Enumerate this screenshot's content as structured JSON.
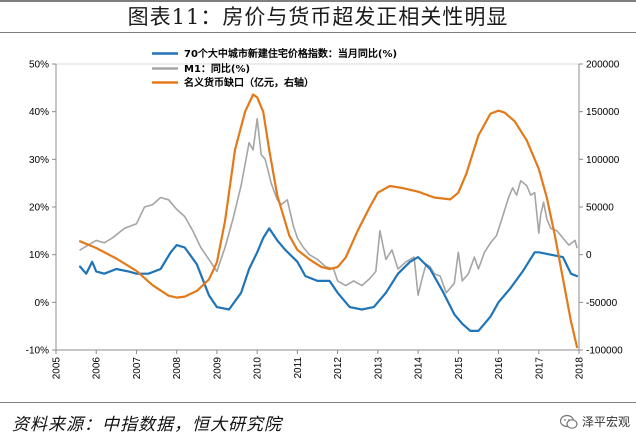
{
  "header": {
    "title": "图表11：房价与货币超发正相关性明显"
  },
  "footer": {
    "source": "资料来源：中指数据，恒大研究院",
    "brand": "泽平宏观"
  },
  "colors": {
    "price": "#1f74b8",
    "m1": "#a5a5a5",
    "gap": "#e37a1a"
  },
  "chart_data": {
    "type": "line",
    "title": "",
    "x_ticks": [
      "2005",
      "2006",
      "2007",
      "2008",
      "2009",
      "2010",
      "2011",
      "2012",
      "2013",
      "2014",
      "2015",
      "2016",
      "2017",
      "2018"
    ],
    "xlim": [
      2005.0,
      2018.0
    ],
    "y_left": {
      "ticks": [
        "-10%",
        "0%",
        "10%",
        "20%",
        "30%",
        "40%",
        "50%"
      ],
      "range": [
        -10,
        50
      ]
    },
    "y_right": {
      "ticks": [
        "-100000",
        "-50000",
        "0",
        "50000",
        "100000",
        "150000",
        "200000"
      ],
      "range": [
        -100000,
        200000
      ]
    },
    "legend": {
      "placement": "top-center"
    },
    "series": [
      {
        "name": "70个大中城市新建住宅价格指数：当月同比(%)",
        "axis": "left",
        "color": "#1f74b8",
        "x": [
          2005.6,
          2005.75,
          2005.9,
          2006.0,
          2006.2,
          2006.5,
          2006.8,
          2007.0,
          2007.3,
          2007.6,
          2007.85,
          2008.0,
          2008.2,
          2008.5,
          2008.8,
          2009.0,
          2009.3,
          2009.6,
          2009.8,
          2010.0,
          2010.15,
          2010.3,
          2010.5,
          2010.7,
          2011.0,
          2011.2,
          2011.5,
          2011.8,
          2012.0,
          2012.3,
          2012.6,
          2012.9,
          2013.2,
          2013.5,
          2013.8,
          2014.0,
          2014.3,
          2014.6,
          2014.9,
          2015.1,
          2015.3,
          2015.5,
          2015.8,
          2016.0,
          2016.3,
          2016.6,
          2016.9,
          2017.0,
          2017.3,
          2017.6,
          2017.8,
          2017.95
        ],
        "y": [
          7.5,
          6.0,
          8.5,
          6.5,
          6.0,
          7.0,
          6.5,
          6.0,
          6.0,
          7.0,
          10.5,
          12.0,
          11.5,
          8.0,
          1.5,
          -1.0,
          -1.5,
          2.0,
          7.0,
          10.5,
          13.5,
          15.5,
          13.0,
          11.0,
          8.5,
          5.5,
          4.5,
          4.5,
          2.0,
          -1.0,
          -1.5,
          -1.0,
          2.0,
          6.0,
          8.5,
          9.5,
          7.0,
          2.5,
          -2.5,
          -4.5,
          -6.0,
          -6.0,
          -3.0,
          0.0,
          3.0,
          6.5,
          10.5,
          10.5,
          10.0,
          9.5,
          6.0,
          5.5
        ]
      },
      {
        "name": "M1：同比(%)",
        "axis": "left",
        "color": "#a5a5a5",
        "x": [
          2005.6,
          2005.8,
          2006.0,
          2006.2,
          2006.4,
          2006.7,
          2007.0,
          2007.2,
          2007.4,
          2007.6,
          2007.8,
          2008.0,
          2008.2,
          2008.4,
          2008.6,
          2008.8,
          2009.0,
          2009.2,
          2009.4,
          2009.6,
          2009.8,
          2009.9,
          2010.0,
          2010.1,
          2010.2,
          2010.35,
          2010.5,
          2010.6,
          2010.75,
          2010.9,
          2011.0,
          2011.15,
          2011.3,
          2011.5,
          2011.7,
          2011.9,
          2012.0,
          2012.2,
          2012.4,
          2012.6,
          2012.8,
          2012.95,
          2013.05,
          2013.2,
          2013.35,
          2013.5,
          2013.7,
          2013.9,
          2014.0,
          2014.1,
          2014.2,
          2014.3,
          2014.4,
          2014.55,
          2014.7,
          2014.9,
          2015.0,
          2015.1,
          2015.25,
          2015.4,
          2015.5,
          2015.65,
          2015.8,
          2015.95,
          2016.1,
          2016.25,
          2016.35,
          2016.45,
          2016.55,
          2016.7,
          2016.8,
          2016.9,
          2017.0,
          2017.05,
          2017.12,
          2017.2,
          2017.3,
          2017.45,
          2017.6,
          2017.75,
          2017.9,
          2017.95
        ],
        "y": [
          11.0,
          12.0,
          13.0,
          12.5,
          13.5,
          15.5,
          16.5,
          20.0,
          20.5,
          22.0,
          21.5,
          19.5,
          18.0,
          15.0,
          11.5,
          9.0,
          6.5,
          11.5,
          17.5,
          24.5,
          33.5,
          32.0,
          38.5,
          31.0,
          30.0,
          25.0,
          21.5,
          20.5,
          21.5,
          16.0,
          13.5,
          11.5,
          10.0,
          9.0,
          7.5,
          7.0,
          4.5,
          3.5,
          4.5,
          3.5,
          5.0,
          6.5,
          15.0,
          9.0,
          11.0,
          7.0,
          8.5,
          9.5,
          1.5,
          5.0,
          8.0,
          7.5,
          6.0,
          5.5,
          2.0,
          4.0,
          10.5,
          4.5,
          6.0,
          9.5,
          7.0,
          10.5,
          12.5,
          14.0,
          18.0,
          22.0,
          24.0,
          22.5,
          25.5,
          24.5,
          22.5,
          23.0,
          14.5,
          18.5,
          21.0,
          17.5,
          15.5,
          15.0,
          13.5,
          12.0,
          13.0,
          11.5
        ]
      },
      {
        "name": "名义货币缺口（亿元，右轴）",
        "axis": "right",
        "color": "#e37a1a",
        "x": [
          2005.6,
          2006.0,
          2006.5,
          2007.0,
          2007.4,
          2007.8,
          2008.0,
          2008.2,
          2008.5,
          2008.8,
          2009.0,
          2009.2,
          2009.45,
          2009.7,
          2009.9,
          2010.0,
          2010.15,
          2010.3,
          2010.5,
          2010.8,
          2011.0,
          2011.3,
          2011.6,
          2011.8,
          2012.0,
          2012.2,
          2012.5,
          2012.8,
          2013.0,
          2013.3,
          2013.6,
          2014.0,
          2014.4,
          2014.8,
          2015.0,
          2015.2,
          2015.5,
          2015.8,
          2016.0,
          2016.15,
          2016.4,
          2016.7,
          2017.0,
          2017.2,
          2017.4,
          2017.6,
          2017.8,
          2017.95
        ],
        "y": [
          14000,
          7000,
          -4000,
          -17000,
          -32000,
          -43000,
          -45000,
          -44000,
          -38000,
          -26000,
          -8000,
          35000,
          110000,
          150000,
          168000,
          165000,
          150000,
          110000,
          62000,
          20000,
          5000,
          -5000,
          -13000,
          -15000,
          -13000,
          -3000,
          25000,
          50000,
          65000,
          72000,
          70000,
          66000,
          60000,
          58000,
          65000,
          85000,
          125000,
          148000,
          151000,
          149000,
          140000,
          120000,
          90000,
          60000,
          20000,
          -25000,
          -70000,
          -97000
        ]
      }
    ]
  }
}
